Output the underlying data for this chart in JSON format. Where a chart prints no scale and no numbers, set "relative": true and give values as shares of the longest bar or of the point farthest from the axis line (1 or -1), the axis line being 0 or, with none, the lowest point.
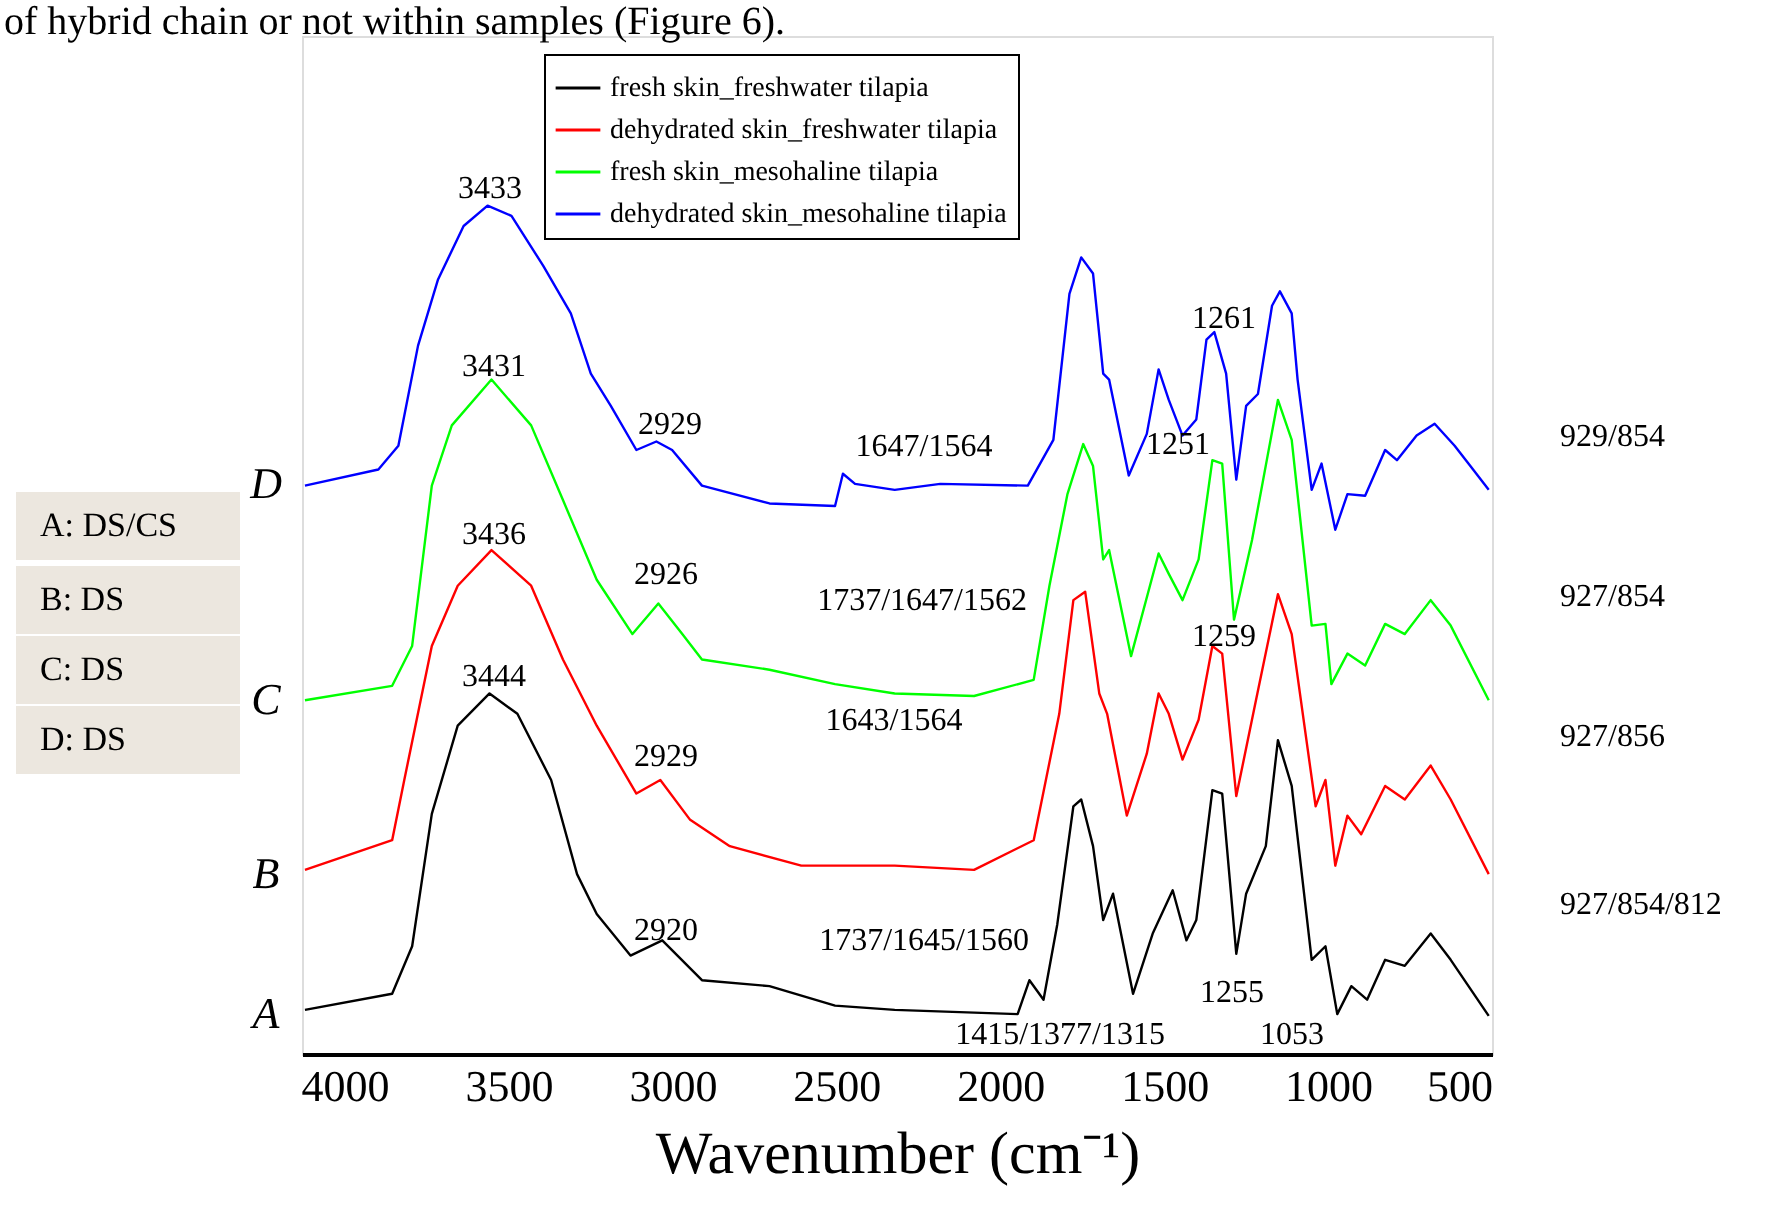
{
  "chart_data": {
    "type": "line",
    "relative": true,
    "xlabel": "Wavenumber  (cm⁻¹)",
    "xlim": [
      4130,
      500
    ],
    "xticks": [
      4000,
      3500,
      3000,
      2500,
      2000,
      1500,
      1000,
      500
    ],
    "grid": false,
    "legend": "top",
    "series": [
      {
        "name": "fresh skin_freshwater tilapia",
        "color": "#000000",
        "x": [
          4121,
          3855,
          3794,
          3734,
          3655,
          3558,
          3473,
          3370,
          3291,
          3231,
          3128,
          3031,
          2910,
          2704,
          2504,
          2322,
          1947,
          1911,
          1868,
          1826,
          1777,
          1753,
          1717,
          1686,
          1656,
          1595,
          1535,
          1474,
          1432,
          1402,
          1353,
          1323,
          1280,
          1250,
          1190,
          1153,
          1111,
          1050,
          1008,
          972,
          929,
          881,
          826,
          766,
          687,
          626,
          510
        ],
        "values": [
          0.052,
          0.071,
          0.127,
          0.283,
          0.387,
          0.425,
          0.401,
          0.323,
          0.212,
          0.165,
          0.116,
          0.134,
          0.087,
          0.08,
          0.057,
          0.052,
          0.047,
          0.087,
          0.064,
          0.153,
          0.292,
          0.3,
          0.245,
          0.158,
          0.189,
          0.071,
          0.142,
          0.193,
          0.134,
          0.158,
          0.311,
          0.307,
          0.118,
          0.189,
          0.245,
          0.37,
          0.316,
          0.111,
          0.127,
          0.047,
          0.08,
          0.064,
          0.111,
          0.104,
          0.142,
          0.111,
          0.045
        ]
      },
      {
        "name": "dehydrated skin_freshwater tilapia",
        "color": "#ff0000",
        "x": [
          4121,
          3855,
          3818,
          3734,
          3655,
          3552,
          3431,
          3334,
          3231,
          3110,
          3037,
          2946,
          2825,
          2607,
          2322,
          2080,
          1898,
          1820,
          1777,
          1741,
          1698,
          1674,
          1614,
          1553,
          1517,
          1486,
          1444,
          1395,
          1353,
          1323,
          1280,
          1220,
          1153,
          1111,
          1038,
          1008,
          978,
          941,
          899,
          826,
          766,
          687,
          626,
          510
        ],
        "values": [
          0.217,
          0.252,
          0.323,
          0.481,
          0.552,
          0.594,
          0.552,
          0.465,
          0.387,
          0.307,
          0.323,
          0.276,
          0.245,
          0.222,
          0.222,
          0.217,
          0.252,
          0.401,
          0.535,
          0.545,
          0.425,
          0.401,
          0.281,
          0.354,
          0.425,
          0.401,
          0.347,
          0.394,
          0.481,
          0.472,
          0.304,
          0.417,
          0.542,
          0.495,
          0.292,
          0.323,
          0.222,
          0.281,
          0.259,
          0.316,
          0.3,
          0.34,
          0.3,
          0.212
        ]
      },
      {
        "name": "fresh skin_mesohaline tilapia",
        "color": "#00ff00",
        "x": [
          4121,
          3855,
          3794,
          3734,
          3673,
          3552,
          3431,
          3334,
          3231,
          3122,
          3043,
          2970,
          2910,
          2704,
          2504,
          2322,
          2080,
          1898,
          1850,
          1795,
          1747,
          1717,
          1686,
          1668,
          1601,
          1517,
          1486,
          1444,
          1395,
          1353,
          1323,
          1287,
          1232,
          1153,
          1111,
          1050,
          1008,
          990,
          941,
          887,
          826,
          766,
          687,
          626,
          510
        ],
        "values": [
          0.417,
          0.434,
          0.481,
          0.67,
          0.741,
          0.795,
          0.741,
          0.653,
          0.559,
          0.495,
          0.531,
          0.495,
          0.465,
          0.453,
          0.436,
          0.425,
          0.422,
          0.441,
          0.552,
          0.66,
          0.719,
          0.693,
          0.583,
          0.594,
          0.469,
          0.59,
          0.566,
          0.535,
          0.583,
          0.7,
          0.696,
          0.512,
          0.606,
          0.771,
          0.724,
          0.505,
          0.507,
          0.436,
          0.472,
          0.458,
          0.507,
          0.495,
          0.535,
          0.505,
          0.417
        ]
      },
      {
        "name": "dehydrated skin_mesohaline tilapia",
        "color": "#0000ff",
        "x": [
          4121,
          3897,
          3836,
          3776,
          3715,
          3637,
          3564,
          3491,
          3394,
          3310,
          3249,
          3188,
          3110,
          3049,
          3001,
          2910,
          2704,
          2504,
          2480,
          2443,
          2322,
          2183,
          1916,
          1838,
          1789,
          1753,
          1717,
          1686,
          1668,
          1608,
          1553,
          1517,
          1486,
          1444,
          1402,
          1371,
          1347,
          1311,
          1280,
          1250,
          1214,
          1171,
          1147,
          1111,
          1093,
          1050,
          1020,
          978,
          941,
          887,
          826,
          790,
          730,
          675,
          614,
          566,
          510
        ],
        "values": [
          0.67,
          0.689,
          0.717,
          0.835,
          0.913,
          0.976,
          1.0,
          0.988,
          0.929,
          0.873,
          0.802,
          0.764,
          0.712,
          0.722,
          0.712,
          0.67,
          0.649,
          0.646,
          0.684,
          0.672,
          0.665,
          0.672,
          0.67,
          0.724,
          0.896,
          0.939,
          0.92,
          0.802,
          0.795,
          0.682,
          0.731,
          0.807,
          0.771,
          0.729,
          0.748,
          0.842,
          0.851,
          0.802,
          0.677,
          0.764,
          0.778,
          0.882,
          0.899,
          0.873,
          0.795,
          0.665,
          0.696,
          0.618,
          0.66,
          0.658,
          0.712,
          0.7,
          0.729,
          0.743,
          0.717,
          0.693,
          0.665
        ]
      }
    ],
    "annotations": [
      "3433",
      "3431",
      "3436",
      "3444",
      "2929",
      "2926",
      "2929",
      "2920",
      "1647/1564",
      "1737/1647/1562",
      "1643/1564",
      "1737/1645/1560",
      "1261",
      "1251",
      "1259",
      "1255",
      "1415/1377/1315",
      "1053",
      "of hybrid chain or not within samples (Figure 6).",
      "D",
      "C",
      "B",
      "A",
      "A: DS/CS",
      "B: DS",
      "C: DS",
      "D: DS",
      "929/854",
      "927/854",
      "927/856",
      "927/854/812"
    ]
  }
}
